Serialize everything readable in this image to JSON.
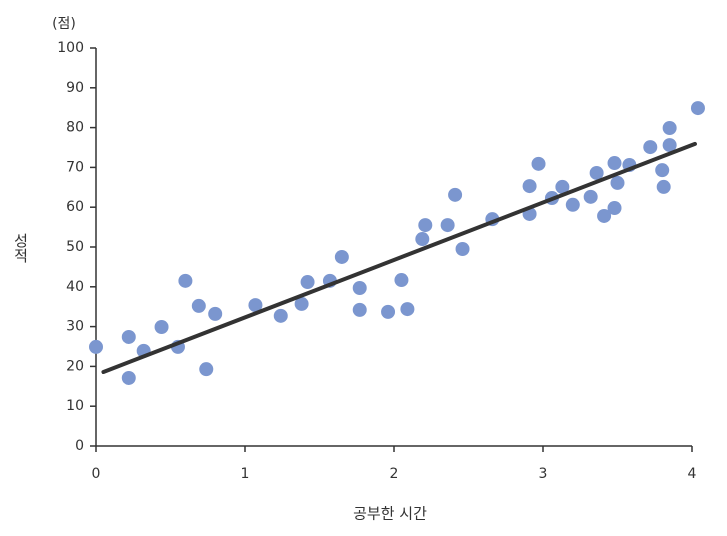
{
  "chart_data": {
    "type": "scatter",
    "y_unit": "(점)",
    "ylabel": "성적",
    "xlabel": "공부한 시간",
    "color": "#7b96cf",
    "x": [
      0.0,
      0.22,
      0.22,
      0.32,
      0.44,
      0.55,
      0.6,
      0.69,
      0.74,
      0.8,
      1.07,
      1.24,
      1.38,
      1.42,
      1.57,
      1.65,
      1.77,
      1.77,
      1.96,
      2.05,
      2.09,
      2.19,
      2.21,
      2.36,
      2.41,
      2.46,
      2.66,
      2.91,
      2.91,
      2.97,
      3.06,
      3.13,
      3.2,
      3.32,
      3.36,
      3.41,
      3.48,
      3.48,
      3.5,
      3.58,
      3.72,
      3.8,
      3.81,
      3.85,
      3.85,
      4.04
    ],
    "values": [
      24.9,
      27.4,
      17.1,
      23.9,
      29.9,
      24.9,
      41.5,
      35.2,
      19.3,
      33.2,
      35.4,
      32.7,
      35.7,
      41.2,
      41.5,
      47.5,
      39.7,
      34.2,
      33.7,
      41.7,
      34.4,
      52.0,
      55.5,
      55.5,
      63.1,
      49.5,
      57.0,
      65.3,
      58.3,
      70.9,
      62.3,
      65.1,
      60.6,
      62.6,
      68.6,
      57.8,
      71.1,
      59.8,
      66.1,
      70.6,
      75.1,
      69.3,
      65.1,
      79.9,
      75.6,
      84.9
    ],
    "fit_line": {
      "x": [
        0.05,
        4.02
      ],
      "values": [
        18.6,
        75.9
      ],
      "color": "#333333"
    },
    "xlim": [
      0,
      4
    ],
    "ylim": [
      0,
      100
    ],
    "xticks": [
      0,
      1,
      2,
      3,
      4
    ],
    "yticks": [
      0,
      10,
      20,
      30,
      40,
      50,
      60,
      70,
      80,
      90,
      100
    ],
    "grid": false
  }
}
